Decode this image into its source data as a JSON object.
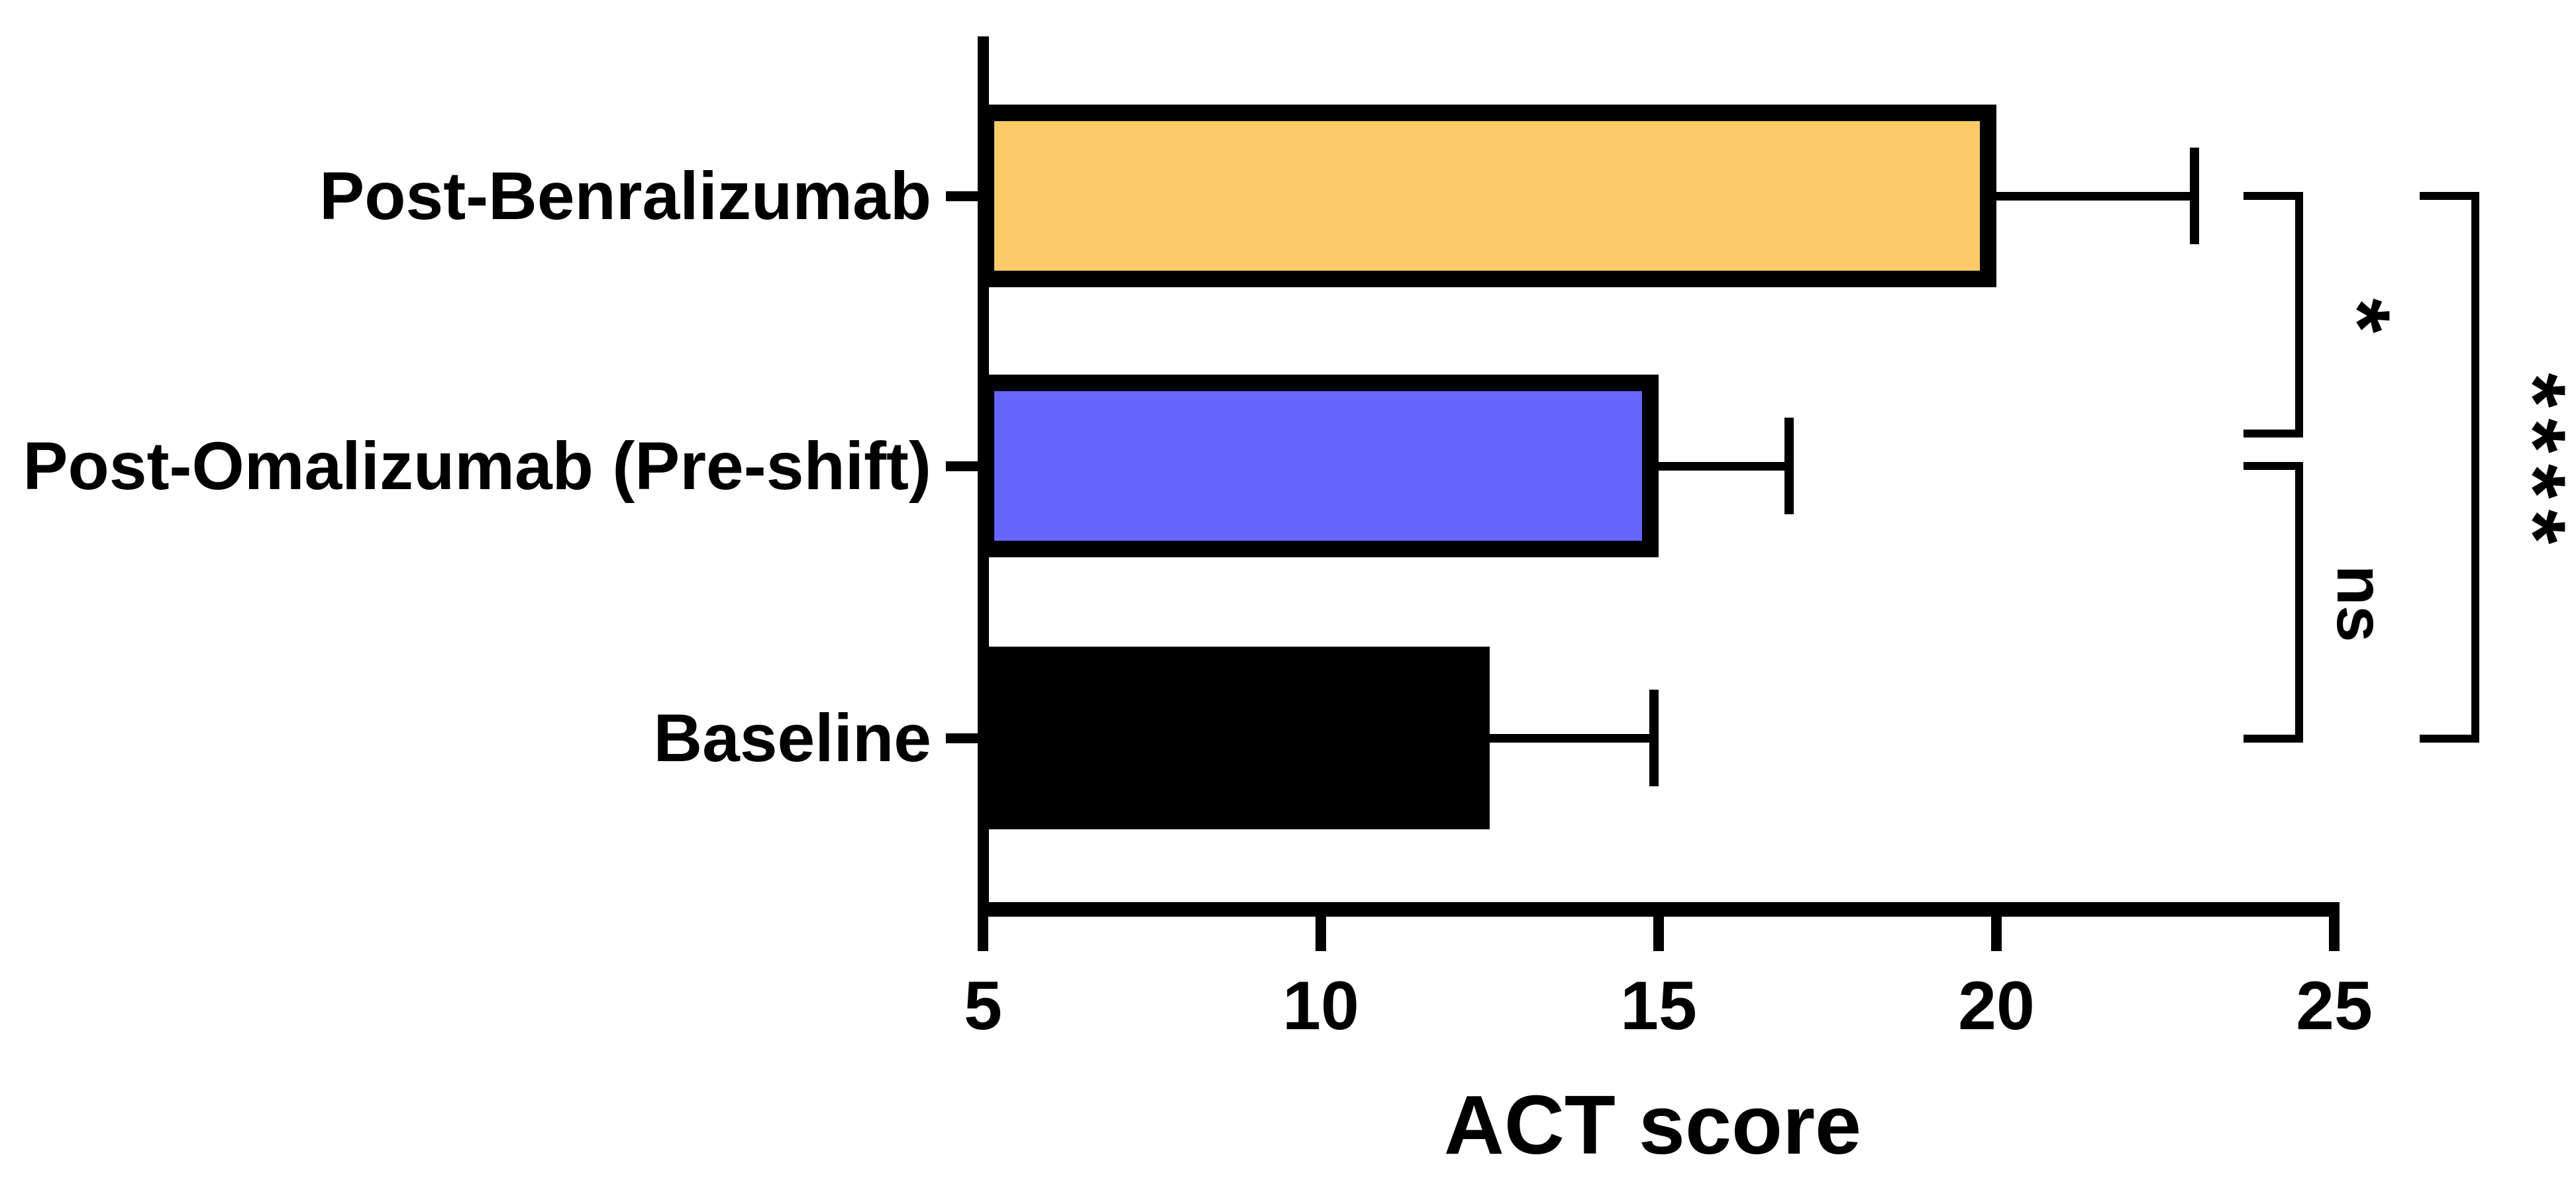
{
  "chart_data": {
    "type": "bar",
    "orientation": "horizontal",
    "title": "",
    "xlabel": "ACT score",
    "ylabel": "",
    "categories": [
      "Post-Benralizumab",
      "Post-Omalizumab (Pre-shift)",
      "Baseline"
    ],
    "values": [
      20,
      15,
      12.5
    ],
    "error_upper_ends": [
      23,
      17,
      15
    ],
    "bar_fill_colors": [
      "#FCCB68",
      "#6666FE",
      "#000000"
    ],
    "bar_border_color": "#000000",
    "xlim": [
      5,
      25
    ],
    "xticks": [
      5,
      10,
      15,
      20,
      25
    ],
    "grid": false,
    "legend_position": "none",
    "significance": [
      {
        "comparison": [
          "Post-Benralizumab",
          "Post-Omalizumab (Pre-shift)"
        ],
        "rows": [
          0,
          1
        ],
        "label": "*",
        "column": "inner"
      },
      {
        "comparison": [
          "Post-Omalizumab (Pre-shift)",
          "Baseline"
        ],
        "rows": [
          1,
          2
        ],
        "label": "ns",
        "column": "inner"
      },
      {
        "comparison": [
          "Post-Benralizumab",
          "Baseline"
        ],
        "rows": [
          0,
          2
        ],
        "label": "****",
        "column": "outer"
      }
    ]
  }
}
